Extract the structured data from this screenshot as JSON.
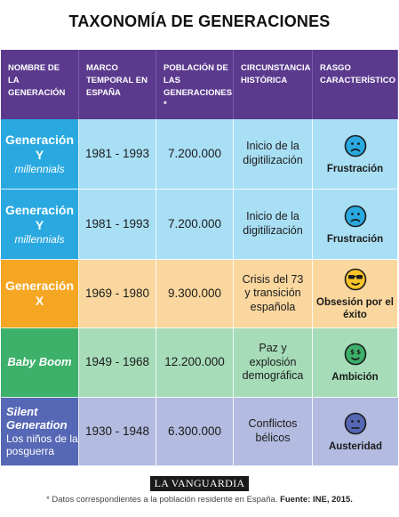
{
  "title": "TAXONOMÍA DE GENERACIONES",
  "headers": {
    "name": "NOMBRE DE LA GENERACIÓN",
    "period": "MARCO TEMPORAL EN ESPAÑA",
    "population": "POBLACIÓN DE LAS GENERACIONES *",
    "history": "CIRCUNSTANCIA HISTÓRICA",
    "trait": "RASGO CARACTERÍSTICO"
  },
  "rows": [
    {
      "name_main": "Generación Y",
      "name_sub": "millennials",
      "period": "1981 - 1993",
      "population": "7.200.000",
      "history": "Inicio de la digitilización",
      "trait": "Frustración",
      "face_icon": "sad-face-icon",
      "color": "#29a9e0",
      "light": "#a9dff5",
      "face_color": "#29a9e0"
    },
    {
      "name_main": "Generación Y",
      "name_sub": "millennials",
      "period": "1981 - 1993",
      "population": "7.200.000",
      "history": "Inicio de la digitilización",
      "trait": "Frustración",
      "face_icon": "sad-face-icon",
      "color": "#29a9e0",
      "light": "#a9dff5",
      "face_color": "#29a9e0"
    },
    {
      "name_main": "Generación X",
      "period": "1969 - 1980",
      "population": "9.300.000",
      "history": "Crisis del 73 y transición española",
      "trait": "Obsesión por el éxito",
      "face_icon": "sunglasses-face-icon",
      "color": "#f5a623",
      "light": "#fad79e",
      "face_color": "#f6c427"
    },
    {
      "name_main": "Baby Boom",
      "period": "1949 - 1968",
      "population": "12.200.000",
      "history": "Paz y explosión demográfica",
      "trait": "Ambición",
      "face_icon": "money-face-icon",
      "color": "#3db06a",
      "light": "#a6dcb8",
      "face_color": "#3db06a"
    },
    {
      "name_main": "Silent Generation",
      "name_sub": "Los niños de la posguerra",
      "period": "1930 - 1948",
      "population": "6.300.000",
      "history": "Conflictos bélicos",
      "trait": "Austeridad",
      "face_icon": "neutral-face-icon",
      "color": "#5667b5",
      "light": "#b3bbe0",
      "face_color": "#5667b5"
    }
  ],
  "logo": "LA VANGUARDIA",
  "footnote": "* Datos correspondientes a la población residente en España.",
  "source": "Fuente: INE, 2015."
}
